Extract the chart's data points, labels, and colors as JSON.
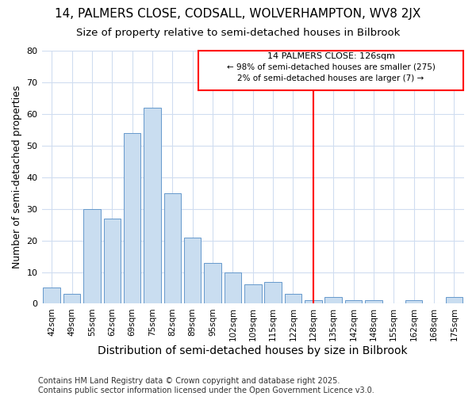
{
  "title1": "14, PALMERS CLOSE, CODSALL, WOLVERHAMPTON, WV8 2JX",
  "title2": "Size of property relative to semi-detached houses in Bilbrook",
  "xlabel": "Distribution of semi-detached houses by size in Bilbrook",
  "ylabel": "Number of semi-detached properties",
  "footnote1": "Contains HM Land Registry data © Crown copyright and database right 2025.",
  "footnote2": "Contains public sector information licensed under the Open Government Licence v3.0.",
  "bin_labels": [
    "42sqm",
    "49sqm",
    "55sqm",
    "62sqm",
    "69sqm",
    "75sqm",
    "82sqm",
    "89sqm",
    "95sqm",
    "102sqm",
    "109sqm",
    "115sqm",
    "122sqm",
    "128sqm",
    "135sqm",
    "142sqm",
    "148sqm",
    "155sqm",
    "162sqm",
    "168sqm",
    "175sqm"
  ],
  "bar_heights": [
    5,
    3,
    30,
    27,
    54,
    62,
    35,
    21,
    13,
    10,
    6,
    7,
    3,
    1,
    2,
    1,
    1,
    0,
    1,
    0,
    2
  ],
  "bar_color": "#c9ddf0",
  "bar_edge_color": "#6699cc",
  "property_line_x": 13.0,
  "property_line_label": "14 PALMERS CLOSE: 126sqm",
  "annotation_line1": "14 PALMERS CLOSE: 126sqm",
  "annotation_line2": "← 98% of semi-detached houses are smaller (275)",
  "annotation_line3": "2% of semi-detached houses are larger (7) →",
  "ylim": [
    0,
    80
  ],
  "yticks": [
    0,
    10,
    20,
    30,
    40,
    50,
    60,
    70,
    80
  ],
  "background_color": "#ffffff",
  "grid_color": "#d0ddf0",
  "title1_fontsize": 11,
  "title2_fontsize": 9.5,
  "xlabel_fontsize": 10,
  "ylabel_fontsize": 9,
  "footnote_fontsize": 7
}
